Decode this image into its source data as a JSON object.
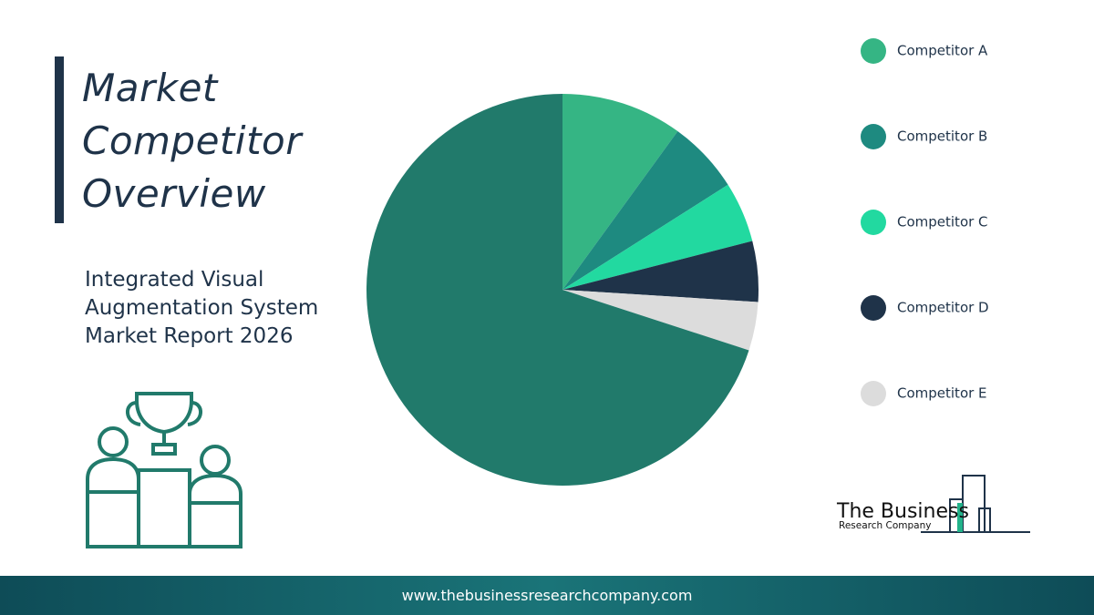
{
  "chart_data": {
    "type": "pie",
    "title": "Market Competitor Overview",
    "subtitle": "Integrated Visual Augmentation System Market Report 2026",
    "categories": [
      "Competitor A",
      "Competitor B",
      "Competitor C",
      "Competitor D",
      "Competitor E",
      null
    ],
    "values": [
      10,
      6,
      5,
      5,
      4,
      70
    ],
    "colors": [
      "#35b584",
      "#1e8a80",
      "#22d9a0",
      "#1f3349",
      "#dcdcdc",
      "#217a6b"
    ],
    "legend": "right"
  },
  "logo": {
    "name": "The Business",
    "tagline": "Research Company"
  },
  "footer": "www.thebusinessresearchcompany.com"
}
